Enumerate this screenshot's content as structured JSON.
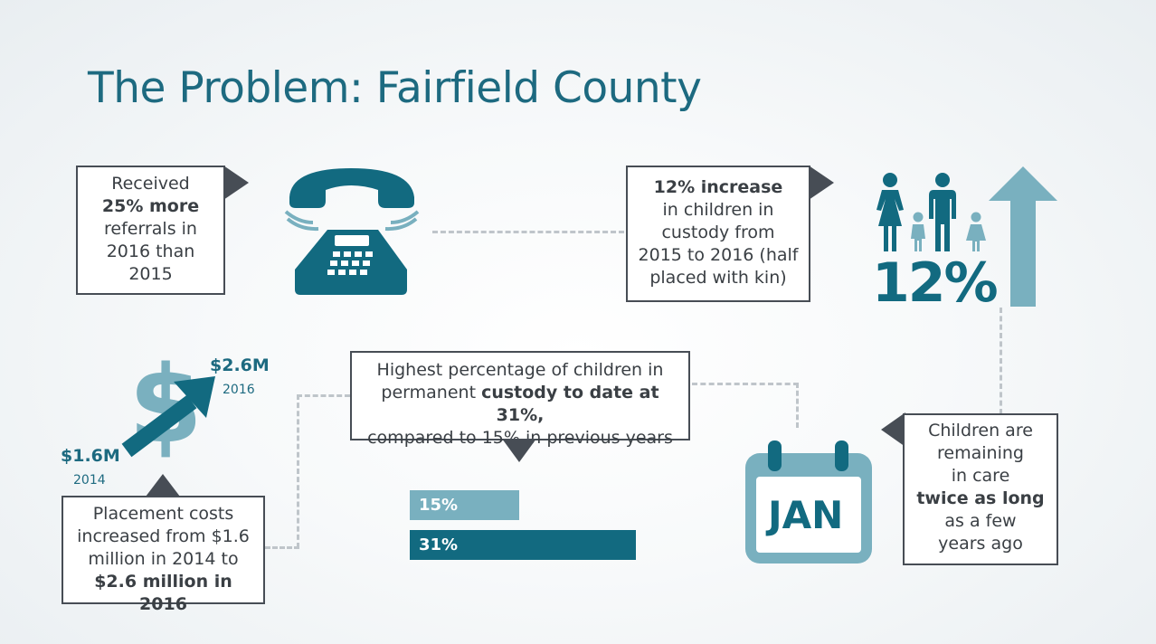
{
  "title": "The Problem: Fairfield County",
  "referrals": {
    "line1": "Received",
    "highlight": "25% more",
    "line2": "referrals in",
    "line3": "2016 than",
    "line4": "2015"
  },
  "custody_increase": {
    "highlight": "12% increase",
    "line1": "in children in",
    "line2": "custody from",
    "line3": "2015 to 2016 (half",
    "line4": "placed with kin)"
  },
  "big_percent": "12%",
  "permanent_custody": {
    "line1": "Highest percentage of children in",
    "line2a": "permanent ",
    "line2b": "custody to date at 31%,",
    "line3": "compared to 15% in previous years"
  },
  "costs": {
    "start_value": "$1.6M",
    "start_year": "2014",
    "end_value": "$2.6M",
    "end_year": "2016",
    "line1": "Placement costs",
    "line2": "increased from $1.6",
    "line3": "million in 2014 to",
    "highlight": "$2.6 million in 2016"
  },
  "calendar_month": "JAN",
  "care_length": {
    "line1": "Children are",
    "line2": "remaining",
    "line3": "in care",
    "highlight": "twice as long",
    "line4": "as a few",
    "line5": "years ago"
  },
  "chart_data": {
    "type": "bar",
    "categories": [
      "15%",
      "31%"
    ],
    "values": [
      15,
      31
    ],
    "colors": [
      "#79b0bf",
      "#126a80"
    ]
  },
  "colors": {
    "teal_dark": "#1d6a80",
    "teal_light": "#79b0bf",
    "box_border": "#474d55"
  }
}
